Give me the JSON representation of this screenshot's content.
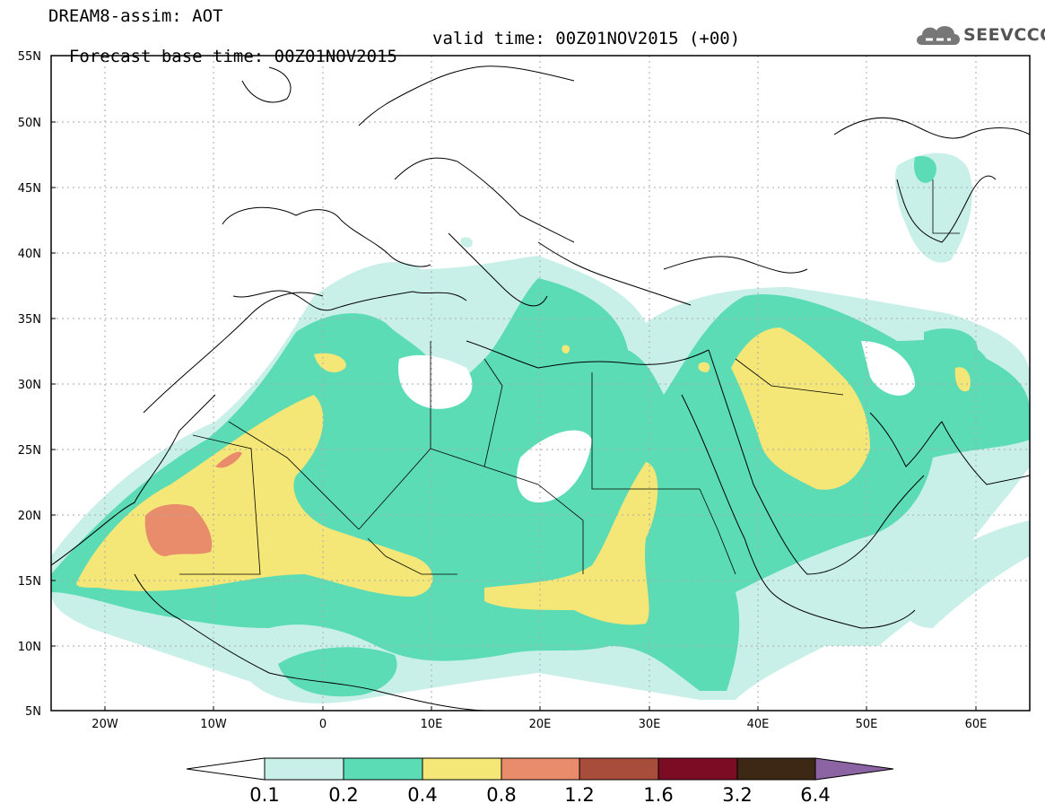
{
  "title_line1": "DREAM8-assim: AOT",
  "title_base": "Forecast base time: 00Z01NOV2015",
  "title_valid": "valid time: 00Z01NOV2015 (+00)",
  "logo_text": "SEEVCCC",
  "lat_labels": [
    "55N",
    "50N",
    "45N",
    "40N",
    "35N",
    "30N",
    "25N",
    "20N",
    "15N",
    "10N",
    "5N"
  ],
  "lon_labels": [
    "20W",
    "10W",
    "0",
    "10E",
    "20E",
    "30E",
    "40E",
    "50E",
    "60E"
  ],
  "colorbar": {
    "levels": [
      "0.1",
      "0.2",
      "0.4",
      "0.8",
      "1.2",
      "1.6",
      "3.2",
      "6.4"
    ],
    "colors": [
      "#c8f0e8",
      "#5cdcb4",
      "#f5e678",
      "#e88c6c",
      "#a84c3c",
      "#7c0c24",
      "#3c2814",
      "#8c64a4"
    ],
    "under_color": "#ffffff"
  },
  "map": {
    "lon_range": [
      -25,
      65
    ],
    "lat_range": [
      5,
      55
    ],
    "grid": true
  },
  "colors": {
    "c01": "#c8f0e8",
    "c02": "#5cdcb4",
    "c04": "#f5e678",
    "c08": "#e88c6c"
  }
}
